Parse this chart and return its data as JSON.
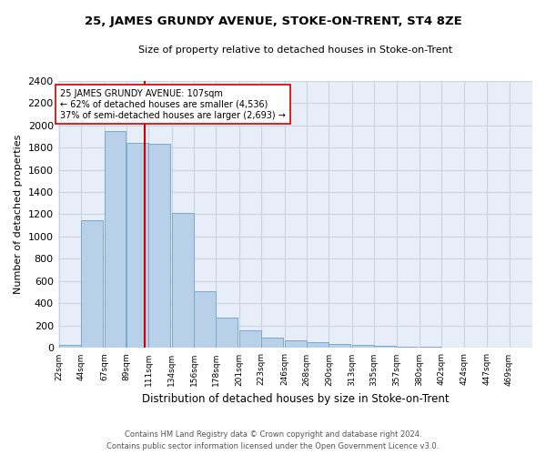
{
  "title": "25, JAMES GRUNDY AVENUE, STOKE-ON-TRENT, ST4 8ZE",
  "subtitle": "Size of property relative to detached houses in Stoke-on-Trent",
  "xlabel": "Distribution of detached houses by size in Stoke-on-Trent",
  "ylabel": "Number of detached properties",
  "footer_line1": "Contains HM Land Registry data © Crown copyright and database right 2024.",
  "footer_line2": "Contains public sector information licensed under the Open Government Licence v3.0.",
  "bin_labels": [
    "22sqm",
    "44sqm",
    "67sqm",
    "89sqm",
    "111sqm",
    "134sqm",
    "156sqm",
    "178sqm",
    "201sqm",
    "223sqm",
    "246sqm",
    "268sqm",
    "290sqm",
    "313sqm",
    "335sqm",
    "357sqm",
    "380sqm",
    "402sqm",
    "424sqm",
    "447sqm",
    "469sqm"
  ],
  "bar_values": [
    30,
    1150,
    1950,
    1840,
    1830,
    1210,
    510,
    275,
    160,
    95,
    70,
    50,
    40,
    28,
    20,
    12,
    8,
    5,
    5,
    4,
    3
  ],
  "bar_color": "#b8d0e8",
  "bar_edge_color": "#7aaaca",
  "grid_color": "#c8d4e4",
  "background_color": "#e8eef8",
  "annotation_text": "25 JAMES GRUNDY AVENUE: 107sqm\n← 62% of detached houses are smaller (4,536)\n37% of semi-detached houses are larger (2,693) →",
  "vline_x": 107,
  "vline_color": "#cc0000",
  "annotation_box_edge": "#cc0000",
  "ylim": [
    0,
    2400
  ],
  "yticks": [
    0,
    200,
    400,
    600,
    800,
    1000,
    1200,
    1400,
    1600,
    1800,
    2000,
    2200,
    2400
  ],
  "bin_starts": [
    22,
    44,
    67,
    89,
    111,
    134,
    156,
    178,
    201,
    223,
    246,
    268,
    290,
    313,
    335,
    357,
    380,
    402,
    424,
    447,
    469
  ],
  "bin_width": 22
}
